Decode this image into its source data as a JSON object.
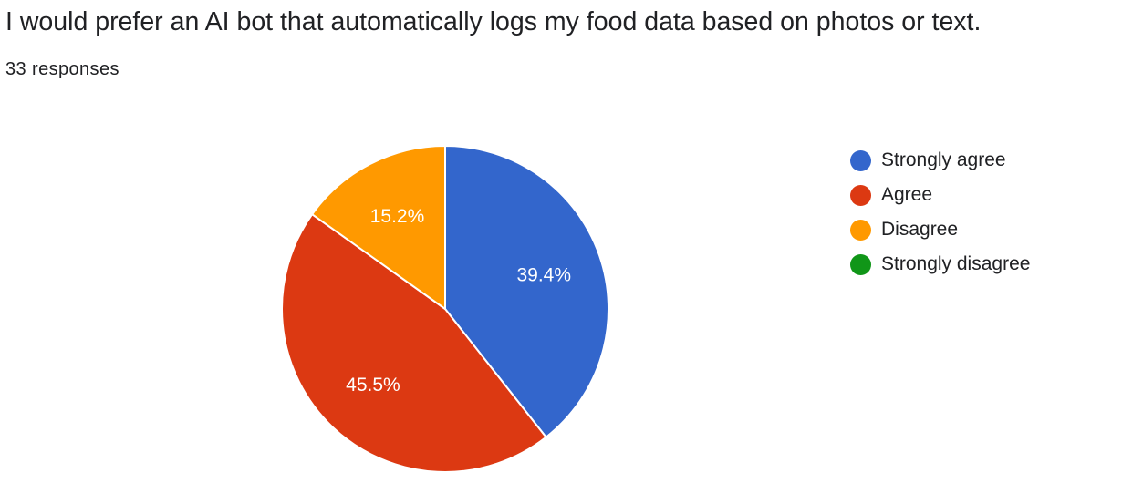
{
  "question": {
    "title": "I would prefer an AI bot that automatically logs my food data based on photos or text.",
    "response_count": "33 responses"
  },
  "chart_data": {
    "type": "pie",
    "categories": [
      "Strongly agree",
      "Agree",
      "Disagree",
      "Strongly disagree"
    ],
    "values": [
      13,
      15,
      5,
      0
    ],
    "percent_labels": [
      "39.4%",
      "45.5%",
      "15.2%",
      ""
    ],
    "colors": [
      "#3366cc",
      "#dc3912",
      "#ff9900",
      "#109618"
    ],
    "title": "",
    "legend_position": "right",
    "start_angle_deg": 90,
    "direction": "clockwise"
  },
  "legend": {
    "items": [
      {
        "label": "Strongly agree",
        "color": "#3366cc"
      },
      {
        "label": "Agree",
        "color": "#dc3912"
      },
      {
        "label": "Disagree",
        "color": "#ff9900"
      },
      {
        "label": "Strongly disagree",
        "color": "#109618"
      }
    ]
  }
}
